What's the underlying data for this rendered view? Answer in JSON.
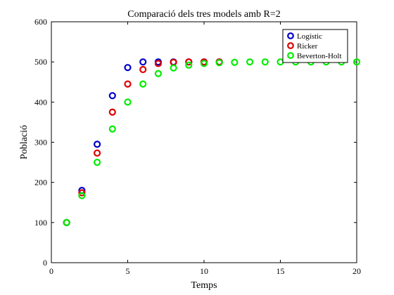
{
  "chart_data": {
    "type": "scatter",
    "title": "Comparació dels tres models amb R=2",
    "xlabel": "Temps",
    "ylabel": "Població",
    "xlim": [
      0,
      20
    ],
    "ylim": [
      0,
      600
    ],
    "xticks": [
      0,
      5,
      10,
      15,
      20
    ],
    "yticks": [
      0,
      100,
      200,
      300,
      400,
      500,
      600
    ],
    "grid": false,
    "legend_position": "top-right",
    "series": [
      {
        "name": "Logístic",
        "color": "#0000cc",
        "x": [
          1,
          2,
          3,
          4,
          5,
          6,
          7,
          8,
          9,
          10,
          11
        ],
        "y": [
          100,
          180,
          295,
          416,
          486,
          500,
          500,
          500,
          500,
          500,
          500
        ]
      },
      {
        "name": "Ricker",
        "color": "#dd0000",
        "x": [
          1,
          2,
          3,
          4,
          5,
          6,
          7,
          8,
          9,
          10,
          11
        ],
        "y": [
          100,
          174,
          273,
          375,
          445,
          481,
          496,
          499,
          500,
          500,
          500
        ]
      },
      {
        "name": "Beverton-Holt",
        "color": "#00ee00",
        "x": [
          1,
          2,
          3,
          4,
          5,
          6,
          7,
          8,
          9,
          10,
          11,
          12,
          13,
          14,
          15,
          16,
          17,
          18,
          19,
          20
        ],
        "y": [
          100,
          167,
          250,
          333,
          400,
          445,
          471,
          485,
          492,
          496,
          498,
          499,
          500,
          500,
          500,
          500,
          500,
          500,
          500,
          500
        ]
      }
    ]
  }
}
